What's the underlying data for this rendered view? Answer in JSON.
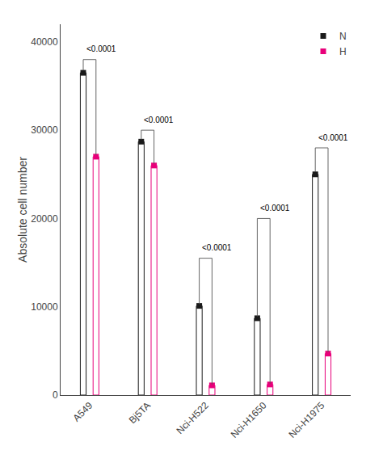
{
  "chart_data": {
    "type": "bar",
    "categories": [
      "A549",
      "Bj5TA",
      "Nci-H522",
      "Nci-H1650",
      "Nci-H1975"
    ],
    "series": [
      {
        "name": "N",
        "color": "#1a1a1a",
        "values": [
          36500,
          28700,
          10100,
          8700,
          25000
        ],
        "errors": [
          300,
          250,
          200,
          200,
          300
        ]
      },
      {
        "name": "H",
        "color": "#e8007a",
        "values": [
          27000,
          26000,
          1100,
          1200,
          4700
        ],
        "errors": [
          200,
          200,
          100,
          100,
          150
        ]
      }
    ],
    "ylabel": "Absolute cell number",
    "ylim": [
      0,
      42000
    ],
    "yticks": [
      0,
      10000,
      20000,
      30000,
      40000
    ],
    "grid": false,
    "legend": "upper right",
    "marker": "square",
    "annotations": [
      {
        "text": "<0.0001",
        "category": "A549",
        "y": 38500,
        "bracket_top": 38000
      },
      {
        "text": "<0.0001",
        "category": "Bj5TA",
        "y": 30500,
        "bracket_top": 30000
      },
      {
        "text": "<0.0001",
        "category": "Nci-H522",
        "y": 16000,
        "bracket_top": 15500
      },
      {
        "text": "<0.0001",
        "category": "Nci-H1650",
        "y": 20500,
        "bracket_top": 20000
      },
      {
        "text": "<0.0001",
        "category": "Nci-H1975",
        "y": 28500,
        "bracket_top": 28000
      }
    ]
  }
}
